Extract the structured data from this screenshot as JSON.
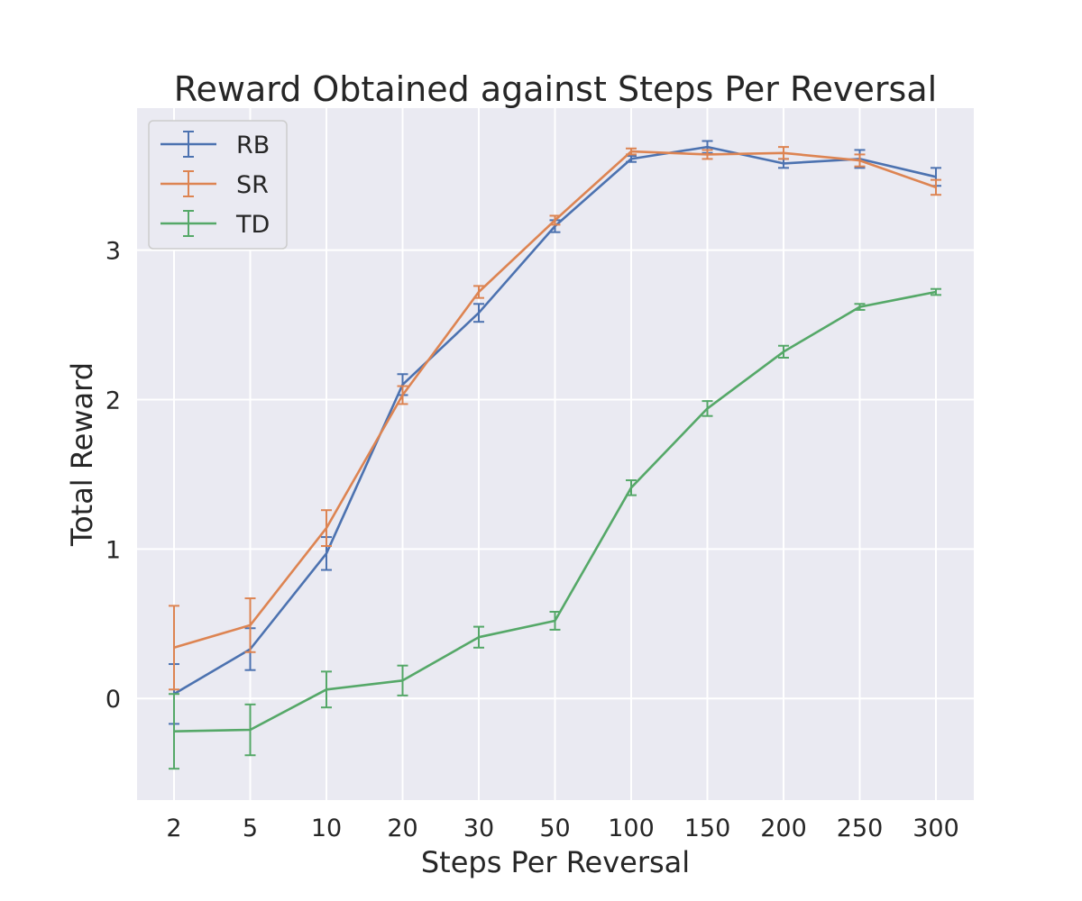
{
  "chart_data": {
    "type": "line",
    "title": "Reward Obtained against Steps Per Reversal",
    "xlabel": "Steps Per Reversal",
    "ylabel": "Total Reward",
    "categories": [
      "2",
      "5",
      "10",
      "20",
      "30",
      "50",
      "100",
      "150",
      "200",
      "250",
      "300"
    ],
    "ylim": [
      -0.68,
      3.95
    ],
    "yticks": [
      0,
      1,
      2,
      3
    ],
    "grid": true,
    "legend_position": "top-left",
    "colors": {
      "background": "#eaeaf2",
      "grid": "#ffffff"
    },
    "series": [
      {
        "name": "RB",
        "color": "#4c72b0",
        "values": [
          0.03,
          0.33,
          0.97,
          2.1,
          2.58,
          3.16,
          3.61,
          3.69,
          3.58,
          3.61,
          3.49
        ],
        "errors": [
          0.2,
          0.14,
          0.11,
          0.07,
          0.06,
          0.04,
          0.02,
          0.04,
          0.03,
          0.06,
          0.06
        ]
      },
      {
        "name": "SR",
        "color": "#dd8452",
        "values": [
          0.34,
          0.49,
          1.14,
          2.03,
          2.72,
          3.2,
          3.66,
          3.64,
          3.65,
          3.6,
          3.42
        ],
        "errors": [
          0.28,
          0.18,
          0.12,
          0.06,
          0.04,
          0.03,
          0.02,
          0.03,
          0.04,
          0.04,
          0.05
        ]
      },
      {
        "name": "TD",
        "color": "#55a868",
        "values": [
          -0.22,
          -0.21,
          0.06,
          0.12,
          0.41,
          0.52,
          1.41,
          1.94,
          2.32,
          2.62,
          2.72
        ],
        "errors": [
          0.25,
          0.17,
          0.12,
          0.1,
          0.07,
          0.06,
          0.05,
          0.05,
          0.04,
          0.02,
          0.02
        ]
      }
    ]
  }
}
